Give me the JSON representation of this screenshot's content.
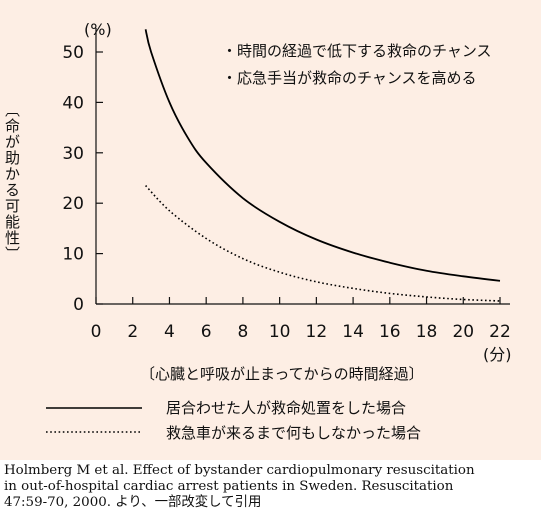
{
  "chart_data": {
    "type": "line",
    "y_unit": "(%)",
    "x_unit": "(分)",
    "ylabel": "〔命が助かる可能性〕",
    "xlabel": "〔心臓と呼吸が止まってからの時間経過〕",
    "xlim": [
      0,
      22
    ],
    "ylim": [
      0,
      55
    ],
    "x_ticks": [
      "0",
      "2",
      "4",
      "6",
      "8",
      "10",
      "12",
      "14",
      "16",
      "18",
      "20",
      "22"
    ],
    "y_ticks": [
      "0",
      "10",
      "20",
      "30",
      "40",
      "50"
    ],
    "annotations": [
      "・時間の経過で低下する救命のチャンス",
      "・応急手当が救命のチャンスを高める"
    ],
    "grid": false,
    "series": [
      {
        "name": "居合わせた人が救命処置をした場合",
        "style": "solid",
        "color": "#000000",
        "x": [
          2.7,
          3,
          4,
          5,
          6,
          8,
          10,
          12,
          14,
          16,
          18,
          20,
          22
        ],
        "values": [
          54.5,
          50,
          40,
          33,
          28,
          21,
          16.3,
          12.8,
          10.2,
          8.2,
          6.6,
          5.5,
          4.6
        ]
      },
      {
        "name": "救急車が来るまで何もしなかった場合",
        "style": "dotted",
        "color": "#000000",
        "x": [
          2.7,
          4,
          6,
          8,
          10,
          12,
          14,
          16,
          18,
          20,
          22
        ],
        "values": [
          23.5,
          18.5,
          13,
          9,
          6.3,
          4.4,
          3.1,
          2.1,
          1.4,
          0.9,
          0.6
        ]
      }
    ]
  },
  "legend": {
    "items": [
      {
        "label": "居合わせた人が救命処置をした場合",
        "style": "solid"
      },
      {
        "label": "救急車が来るまで何もしなかった場合",
        "style": "dotted"
      }
    ]
  },
  "citation": {
    "lines": [
      "Holmberg M et al. Effect of bystander cardiopulmonary resuscitation",
      "in out-of-hospital cardiac arrest patients in Sweden. Resuscitation",
      "47:59-70, 2000. より、一部改変して引用"
    ]
  }
}
